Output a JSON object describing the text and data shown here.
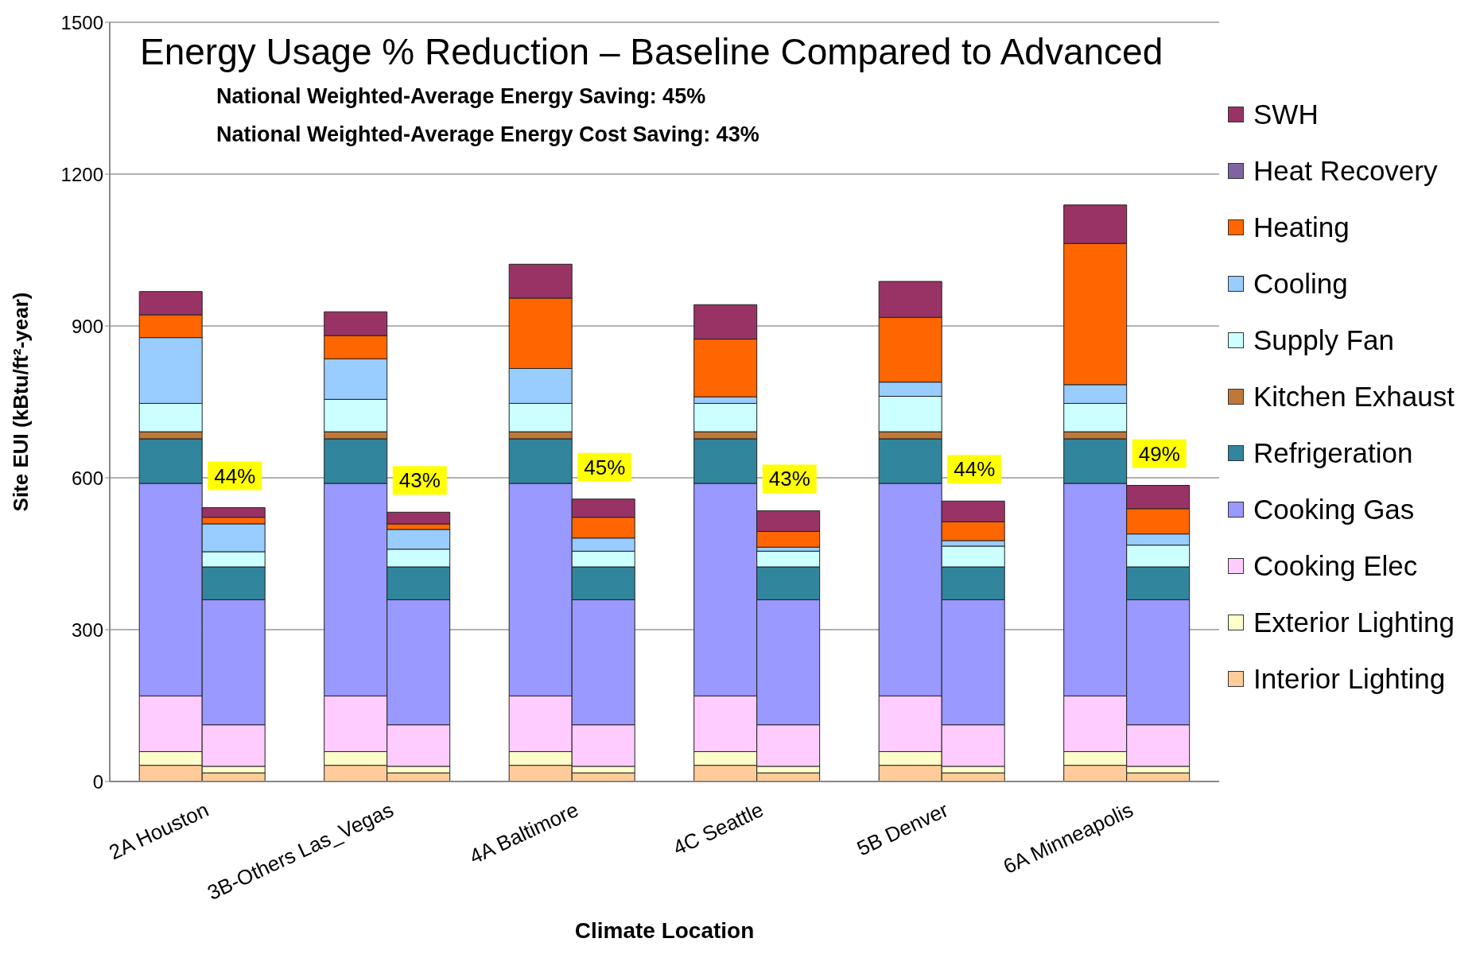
{
  "chart_data": {
    "type": "bar",
    "stacked": true,
    "title": "Energy Usage % Reduction – Baseline Compared to Advanced",
    "annotations": [
      "National Weighted-Average Energy Saving: 45%",
      "National Weighted-Average Energy Cost Saving: 43%",
      "44%",
      "43%",
      "45%",
      "43%",
      "44%",
      "49%"
    ],
    "xlabel": "Climate Location",
    "ylabel": "Site EUI (kBtu/ft²-year)",
    "categories": [
      "2A Houston",
      null,
      "3B-Others Las_Vegas",
      null,
      "4A Baltimore",
      null,
      "4C Seattle",
      null,
      "5B Denver",
      null,
      "6A Minneapolis",
      null
    ],
    "ylim": [
      0,
      1500
    ],
    "yticks": [
      0,
      300,
      600,
      900,
      1200,
      1500
    ],
    "grid": "y",
    "legend": "right",
    "series": [
      {
        "name": "Interior Lighting",
        "color": "#ffcc99",
        "values": [
          32,
          17,
          32,
          17,
          32,
          17,
          32,
          17,
          32,
          17,
          32,
          17
        ]
      },
      {
        "name": "Exterior Lighting",
        "color": "#ffffcc",
        "values": [
          27,
          13,
          27,
          13,
          27,
          13,
          27,
          13,
          27,
          13,
          27,
          13
        ]
      },
      {
        "name": "Cooking Elec",
        "color": "#ffccff",
        "values": [
          110,
          82,
          110,
          82,
          110,
          82,
          110,
          82,
          110,
          82,
          110,
          82
        ]
      },
      {
        "name": "Cooking Gas",
        "color": "#9999ff",
        "values": [
          420,
          247,
          420,
          247,
          420,
          247,
          420,
          247,
          420,
          247,
          420,
          247
        ]
      },
      {
        "name": "Refrigeration",
        "color": "#31859c",
        "values": [
          88,
          65,
          88,
          65,
          88,
          65,
          88,
          65,
          88,
          65,
          88,
          65
        ]
      },
      {
        "name": "Kitchen Exhaust",
        "color": "#c0773a",
        "values": [
          14,
          0,
          14,
          0,
          14,
          0,
          14,
          0,
          14,
          0,
          14,
          0
        ]
      },
      {
        "name": "Supply Fan",
        "color": "#ccffff",
        "values": [
          56,
          30,
          64,
          35,
          56,
          31,
          56,
          31,
          70,
          41,
          56,
          43
        ]
      },
      {
        "name": "Cooling",
        "color": "#99ccff",
        "values": [
          130,
          55,
          80,
          39,
          69,
          26,
          13,
          8,
          28,
          11,
          37,
          22
        ]
      },
      {
        "name": "Heating",
        "color": "#ff6600",
        "values": [
          45,
          13,
          46,
          11,
          139,
          41,
          114,
          31,
          128,
          37,
          279,
          50
        ]
      },
      {
        "name": "Heat Recovery",
        "color": "#8064a2",
        "values": [
          0,
          0,
          0,
          0,
          0,
          0,
          0,
          0,
          0,
          0,
          0,
          0
        ]
      },
      {
        "name": "SWH",
        "color": "#993366",
        "values": [
          46,
          19,
          47,
          23,
          67,
          36,
          68,
          41,
          71,
          41,
          76,
          46
        ]
      }
    ]
  }
}
